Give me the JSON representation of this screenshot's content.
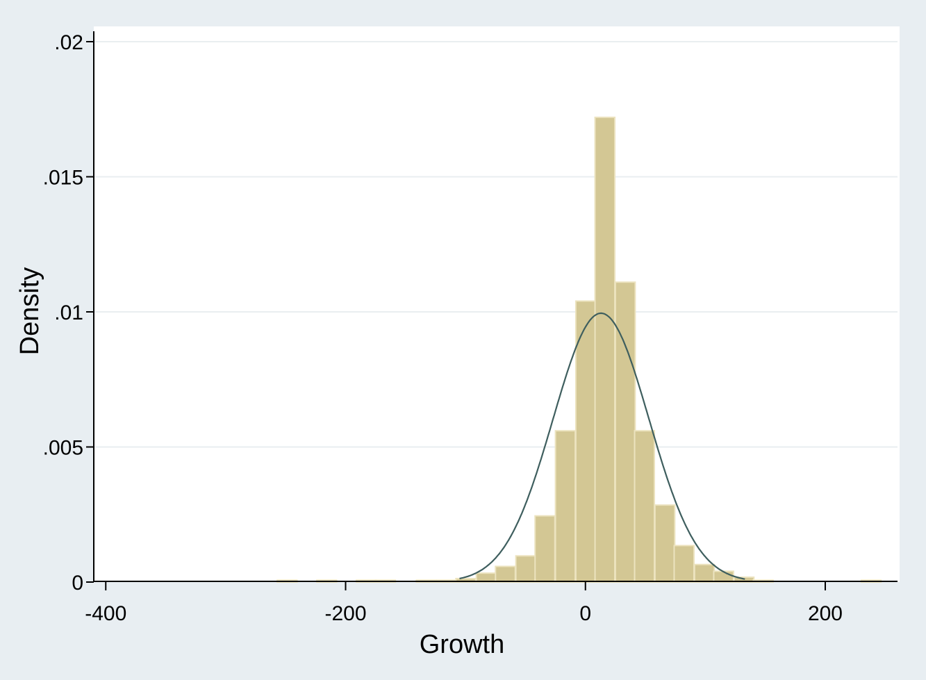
{
  "chart_data": {
    "type": "bar",
    "subtype": "histogram-with-normal-density",
    "title": "",
    "xlabel": "Growth",
    "ylabel": "Density",
    "xlim": [
      -410,
      262
    ],
    "ylim": [
      0,
      0.02
    ],
    "x_ticks": [
      -400,
      -200,
      0,
      200
    ],
    "x_tick_labels": [
      "-400",
      "-200",
      "0",
      "200"
    ],
    "y_ticks": [
      0,
      0.005,
      0.01,
      0.015,
      0.02
    ],
    "y_tick_labels": [
      "0",
      ".005",
      ".01",
      ".015",
      ".02"
    ],
    "grid": "horizontal",
    "bar_color": "#d3c794",
    "bar_edge_color": "#ece3bf",
    "curve_color": "#3e5e5e",
    "bin_width": 16.5,
    "bin_starts": [
      -257,
      -224,
      -191,
      -175,
      -141,
      -124,
      -108,
      -91,
      -75,
      -58,
      -42,
      -25,
      -8,
      8,
      25,
      41,
      58,
      74,
      91,
      107,
      124,
      140,
      230
    ],
    "densities": [
      7e-05,
      7e-05,
      7e-05,
      7e-05,
      7e-05,
      7e-05,
      0.00013,
      0.00033,
      0.00058,
      0.00097,
      0.00245,
      0.0056,
      0.0104,
      0.0172,
      0.0111,
      0.0056,
      0.00285,
      0.00135,
      0.00065,
      0.0004,
      0.00018,
      7e-05,
      7e-05
    ],
    "normal_curve": {
      "mean": 13,
      "sd": 40,
      "peak": 0.00995
    }
  }
}
